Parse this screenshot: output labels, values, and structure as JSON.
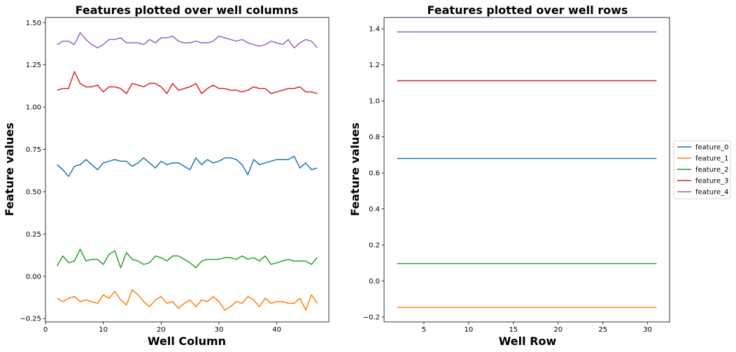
{
  "colors": {
    "feature_0": "#1f77b4",
    "feature_1": "#ff7f0e",
    "feature_2": "#2ca02c",
    "feature_3": "#d62728",
    "feature_4": "#9467bd"
  },
  "legend": {
    "placement": "outside-right",
    "entries": [
      "feature_0",
      "feature_1",
      "feature_2",
      "feature_3",
      "feature_4"
    ]
  },
  "chart_data": [
    {
      "type": "line",
      "title": "Features plotted over well columns",
      "xlabel": "Well Column",
      "ylabel": "Feature values",
      "xlim": [
        0,
        49
      ],
      "ylim": [
        -0.27,
        1.53
      ],
      "xticks": [
        0,
        10,
        20,
        30,
        40
      ],
      "yticks": [
        -0.25,
        0.0,
        0.25,
        0.5,
        0.75,
        1.0,
        1.25,
        1.5
      ],
      "ytick_labels": [
        "−0.25",
        "0.00",
        "0.25",
        "0.50",
        "0.75",
        "1.00",
        "1.25",
        "1.50"
      ],
      "grid": false,
      "x": [
        2,
        3,
        4,
        5,
        6,
        7,
        8,
        9,
        10,
        11,
        12,
        13,
        14,
        15,
        16,
        17,
        18,
        19,
        20,
        21,
        22,
        23,
        24,
        25,
        26,
        27,
        28,
        29,
        30,
        31,
        32,
        33,
        34,
        35,
        36,
        37,
        38,
        39,
        40,
        41,
        42,
        43,
        44,
        45,
        46,
        47
      ],
      "series": [
        {
          "name": "feature_0",
          "values": [
            0.66,
            0.63,
            0.59,
            0.65,
            0.66,
            0.69,
            0.66,
            0.63,
            0.67,
            0.68,
            0.69,
            0.68,
            0.68,
            0.65,
            0.67,
            0.7,
            0.67,
            0.64,
            0.68,
            0.66,
            0.67,
            0.67,
            0.65,
            0.63,
            0.7,
            0.66,
            0.69,
            0.67,
            0.68,
            0.7,
            0.7,
            0.69,
            0.66,
            0.6,
            0.69,
            0.66,
            0.67,
            0.68,
            0.69,
            0.69,
            0.69,
            0.71,
            0.64,
            0.67,
            0.63,
            0.64
          ]
        },
        {
          "name": "feature_1",
          "values": [
            -0.13,
            -0.15,
            -0.13,
            -0.12,
            -0.15,
            -0.14,
            -0.15,
            -0.16,
            -0.11,
            -0.13,
            -0.09,
            -0.14,
            -0.17,
            -0.08,
            -0.11,
            -0.15,
            -0.18,
            -0.14,
            -0.12,
            -0.16,
            -0.15,
            -0.19,
            -0.16,
            -0.14,
            -0.18,
            -0.14,
            -0.15,
            -0.12,
            -0.15,
            -0.2,
            -0.18,
            -0.15,
            -0.16,
            -0.12,
            -0.14,
            -0.18,
            -0.13,
            -0.16,
            -0.15,
            -0.15,
            -0.16,
            -0.16,
            -0.13,
            -0.2,
            -0.11,
            -0.16
          ]
        },
        {
          "name": "feature_2",
          "values": [
            0.06,
            0.12,
            0.08,
            0.09,
            0.16,
            0.09,
            0.1,
            0.1,
            0.07,
            0.13,
            0.15,
            0.05,
            0.14,
            0.1,
            0.09,
            0.07,
            0.08,
            0.12,
            0.11,
            0.09,
            0.12,
            0.12,
            0.1,
            0.08,
            0.05,
            0.09,
            0.1,
            0.1,
            0.1,
            0.11,
            0.11,
            0.1,
            0.12,
            0.1,
            0.11,
            0.09,
            0.12,
            0.07,
            0.08,
            0.09,
            0.1,
            0.09,
            0.09,
            0.09,
            0.07,
            0.11
          ]
        },
        {
          "name": "feature_3",
          "values": [
            1.1,
            1.11,
            1.11,
            1.21,
            1.14,
            1.12,
            1.12,
            1.13,
            1.09,
            1.12,
            1.12,
            1.11,
            1.08,
            1.14,
            1.13,
            1.12,
            1.14,
            1.14,
            1.12,
            1.08,
            1.14,
            1.1,
            1.11,
            1.12,
            1.14,
            1.08,
            1.11,
            1.13,
            1.11,
            1.11,
            1.1,
            1.1,
            1.09,
            1.1,
            1.12,
            1.11,
            1.11,
            1.08,
            1.09,
            1.1,
            1.11,
            1.11,
            1.12,
            1.09,
            1.09,
            1.08
          ]
        },
        {
          "name": "feature_4",
          "values": [
            1.37,
            1.39,
            1.39,
            1.37,
            1.44,
            1.4,
            1.37,
            1.35,
            1.37,
            1.4,
            1.4,
            1.41,
            1.38,
            1.38,
            1.38,
            1.37,
            1.4,
            1.38,
            1.41,
            1.41,
            1.42,
            1.39,
            1.38,
            1.38,
            1.39,
            1.38,
            1.38,
            1.39,
            1.42,
            1.41,
            1.4,
            1.39,
            1.4,
            1.38,
            1.37,
            1.36,
            1.37,
            1.39,
            1.38,
            1.37,
            1.4,
            1.35,
            1.38,
            1.4,
            1.39,
            1.35
          ]
        }
      ]
    },
    {
      "type": "line",
      "title": "Features plotted over well rows",
      "xlabel": "Well Row",
      "ylabel": "Feature values",
      "xlim": [
        0.55,
        32.45
      ],
      "ylim": [
        -0.227,
        1.463
      ],
      "xticks": [
        5,
        10,
        15,
        20,
        25,
        30
      ],
      "yticks": [
        -0.2,
        0.0,
        0.2,
        0.4,
        0.6,
        0.8,
        1.0,
        1.2,
        1.4
      ],
      "ytick_labels": [
        "−0.2",
        "0.0",
        "0.2",
        "0.4",
        "0.6",
        "0.8",
        "1.0",
        "1.2",
        "1.4"
      ],
      "grid": false,
      "x": [
        2,
        31
      ],
      "series": [
        {
          "name": "feature_0",
          "values": [
            0.68,
            0.68
          ]
        },
        {
          "name": "feature_1",
          "values": [
            -0.147,
            -0.147
          ]
        },
        {
          "name": "feature_2",
          "values": [
            0.097,
            0.097
          ]
        },
        {
          "name": "feature_3",
          "values": [
            1.112,
            1.112
          ]
        },
        {
          "name": "feature_4",
          "values": [
            1.383,
            1.383
          ]
        }
      ]
    }
  ]
}
